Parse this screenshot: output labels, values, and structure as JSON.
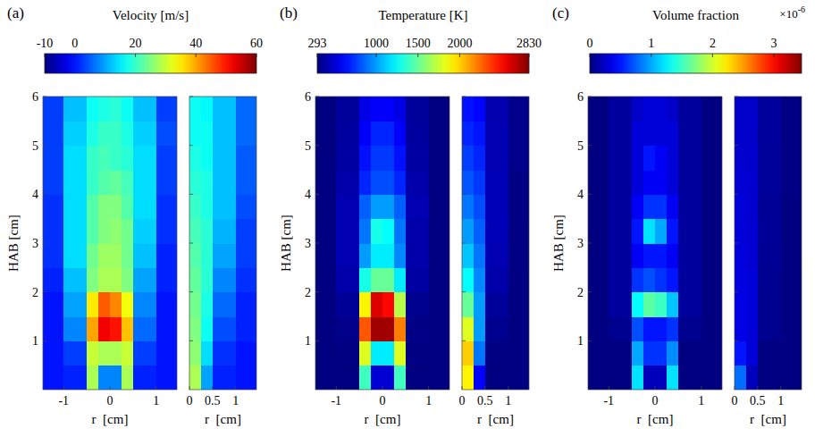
{
  "chart_data": [
    {
      "type": "heatmap",
      "label": "(a)",
      "colorbar": {
        "title": "Velocity [m/s]",
        "range": [
          -10,
          60
        ],
        "ticks": [
          -10,
          0,
          20,
          40,
          60
        ]
      },
      "plots": [
        {
          "xlim": [
            -1.45,
            1.45
          ],
          "xticks": [
            -1,
            0,
            1
          ],
          "ylim": [
            0,
            6
          ],
          "yticks": [
            1,
            2,
            3,
            4,
            5,
            6
          ],
          "xlabel": "r  [cm]",
          "ylabel": "HAB [cm]",
          "x_edges": [
            -1.45,
            -1,
            -0.5,
            -0.25,
            0,
            0.25,
            0.5,
            1,
            1.45
          ],
          "y_edges": [
            0,
            0.5,
            1,
            1.5,
            2,
            2.5,
            3,
            3.5,
            4,
            4.5,
            5,
            5.5,
            6
          ],
          "cells": [
            [
              0,
              1,
              28,
              8,
              8,
              28,
              1,
              0
            ],
            [
              0,
              3,
              30,
              28,
              28,
              30,
              3,
              0
            ],
            [
              0,
              8,
              40,
              52,
              50,
              38,
              6,
              0
            ],
            [
              0,
              10,
              35,
              45,
              42,
              33,
              8,
              0
            ],
            [
              1,
              12,
              25,
              28,
              28,
              25,
              10,
              1
            ],
            [
              2,
              14,
              24,
              27,
              27,
              24,
              12,
              1
            ],
            [
              2,
              14,
              22,
              25,
              26,
              24,
              13,
              2
            ],
            [
              2,
              14,
              22,
              25,
              25,
              22,
              14,
              2
            ],
            [
              3,
              14,
              20,
              22,
              23,
              21,
              14,
              3
            ],
            [
              3,
              14,
              20,
              21,
              20,
              19,
              14,
              3
            ],
            [
              3,
              13,
              18,
              20,
              20,
              18,
              13,
              4
            ],
            [
              3,
              12,
              17,
              18,
              19,
              17,
              12,
              3
            ]
          ]
        },
        {
          "xlim": [
            0,
            1.45
          ],
          "xticks": [
            0,
            0.5,
            1
          ],
          "ylim": [
            0,
            6
          ],
          "yticks": [
            1,
            2,
            3,
            4,
            5,
            6
          ],
          "xlabel": "r  [cm]",
          "tick_labels": "x",
          "x_edges": [
            0,
            0.25,
            0.5,
            1,
            1.45
          ],
          "y_edges": [
            0,
            0.5,
            1,
            1.5,
            2,
            2.5,
            3,
            3.5,
            4,
            4.5,
            5,
            5.5,
            6
          ],
          "cells": [
            [
              28,
              10,
              1,
              0
            ],
            [
              26,
              14,
              2,
              0
            ],
            [
              25,
              17,
              4,
              1
            ],
            [
              24,
              18,
              6,
              1
            ],
            [
              23,
              19,
              8,
              2
            ],
            [
              22,
              19,
              10,
              3
            ],
            [
              21,
              19,
              11,
              3
            ],
            [
              20,
              18,
              12,
              4
            ],
            [
              19,
              18,
              12,
              5
            ],
            [
              18,
              17,
              12,
              5
            ],
            [
              17,
              17,
              12,
              6
            ],
            [
              17,
              16,
              12,
              6
            ]
          ]
        }
      ]
    },
    {
      "type": "heatmap",
      "label": "(b)",
      "colorbar": {
        "title": "Temperature [K]",
        "range": [
          293,
          2830
        ],
        "ticks": [
          293,
          1000,
          1500,
          2000,
          2830
        ]
      },
      "plots": [
        {
          "xlim": [
            -1.45,
            1.45
          ],
          "xticks": [
            -1,
            0,
            1
          ],
          "ylim": [
            0,
            6
          ],
          "yticks": [
            1,
            2,
            3,
            4,
            5,
            6
          ],
          "xlabel": "r  [cm]",
          "ylabel": "HAB [cm]",
          "x_edges": [
            -1.45,
            -1,
            -0.5,
            -0.25,
            0,
            0.25,
            0.5,
            1,
            1.45
          ],
          "y_edges": [
            0,
            0.5,
            1,
            1.5,
            2,
            2.5,
            3,
            3.5,
            4,
            4.5,
            5,
            5.5,
            6
          ],
          "cells": [
            [
              293,
              293,
              1400,
              500,
              500,
              1400,
              293,
              293
            ],
            [
              293,
              300,
              1800,
              1200,
              1200,
              1800,
              300,
              293
            ],
            [
              293,
              320,
              2300,
              2750,
              2750,
              2200,
              310,
              293
            ],
            [
              293,
              350,
              1900,
              2600,
              2500,
              1700,
              330,
              293
            ],
            [
              293,
              400,
              1300,
              1500,
              1500,
              1200,
              380,
              293
            ],
            [
              293,
              420,
              1000,
              1200,
              1200,
              950,
              400,
              293
            ],
            [
              293,
              420,
              900,
              1300,
              1250,
              900,
              400,
              293
            ],
            [
              293,
              420,
              850,
              1000,
              1000,
              850,
              420,
              293
            ],
            [
              293,
              400,
              700,
              800,
              800,
              700,
              400,
              293
            ],
            [
              293,
              380,
              650,
              750,
              750,
              650,
              380,
              293
            ],
            [
              293,
              370,
              600,
              700,
              700,
              600,
              370,
              293
            ],
            [
              293,
              360,
              550,
              600,
              600,
              550,
              360,
              293
            ]
          ]
        },
        {
          "xlim": [
            0,
            1.45
          ],
          "xticks": [
            0,
            0.5,
            1
          ],
          "ylim": [
            0,
            6
          ],
          "yticks": [
            1,
            2,
            3,
            4,
            5,
            6
          ],
          "xlabel": "r  [cm]",
          "tick_labels": "x",
          "x_edges": [
            0,
            0.25,
            0.5,
            1,
            1.45
          ],
          "y_edges": [
            0,
            0.5,
            1,
            1.5,
            2,
            2.5,
            3,
            3.5,
            4,
            4.5,
            5,
            5.5,
            6
          ],
          "cells": [
            [
              1900,
              600,
              293,
              293
            ],
            [
              2000,
              900,
              300,
              293
            ],
            [
              1800,
              1000,
              330,
              293
            ],
            [
              1500,
              1000,
              360,
              293
            ],
            [
              1250,
              950,
              400,
              293
            ],
            [
              1100,
              900,
              420,
              300
            ],
            [
              1000,
              850,
              430,
              300
            ],
            [
              900,
              800,
              430,
              310
            ],
            [
              820,
              750,
              430,
              310
            ],
            [
              760,
              700,
              420,
              320
            ],
            [
              700,
              660,
              420,
              320
            ],
            [
              650,
              620,
              410,
              320
            ]
          ]
        }
      ]
    },
    {
      "type": "heatmap",
      "label": "(c)",
      "colorbar": {
        "title": "Volume fraction",
        "range": [
          0,
          3.45
        ],
        "ticks": [
          0,
          1,
          2,
          3
        ],
        "multiplier": {
          "base": "×10",
          "exponent": "-6"
        }
      },
      "plots": [
        {
          "xlim": [
            -1.45,
            1.45
          ],
          "xticks": [
            -1,
            0,
            1
          ],
          "ylim": [
            0,
            6
          ],
          "yticks": [
            1,
            2,
            3,
            4,
            5,
            6
          ],
          "xlabel": "r  [cm]",
          "ylabel": "HAB [cm]",
          "x_edges": [
            -1.45,
            -1,
            -0.5,
            -0.25,
            0,
            0.25,
            0.5,
            1,
            1.45
          ],
          "y_edges": [
            0,
            0.5,
            1,
            1.5,
            2,
            2.5,
            3,
            3.5,
            4,
            4.5,
            5,
            5.5,
            6
          ],
          "cells": [
            [
              0,
              0,
              1.2,
              0.2,
              0.2,
              1.2,
              0,
              0
            ],
            [
              0,
              0,
              1.0,
              0.6,
              0.6,
              0.9,
              0,
              0
            ],
            [
              0,
              0.05,
              0.7,
              0.5,
              0.5,
              0.6,
              0.05,
              0
            ],
            [
              0,
              0.1,
              1.3,
              1.6,
              1.5,
              1.1,
              0.1,
              0
            ],
            [
              0,
              0.1,
              0.6,
              0.7,
              0.6,
              0.5,
              0.1,
              0
            ],
            [
              0,
              0.1,
              0.4,
              0.5,
              0.5,
              0.4,
              0.1,
              0
            ],
            [
              0,
              0.1,
              0.5,
              1.2,
              1.0,
              0.5,
              0.1,
              0
            ],
            [
              0,
              0.1,
              0.4,
              0.6,
              0.6,
              0.4,
              0.1,
              0
            ],
            [
              0,
              0.1,
              0.3,
              0.4,
              0.4,
              0.3,
              0.1,
              0
            ],
            [
              0,
              0.1,
              0.3,
              0.5,
              0.4,
              0.3,
              0.1,
              0
            ],
            [
              0,
              0.1,
              0.3,
              0.3,
              0.3,
              0.3,
              0.1,
              0
            ],
            [
              0,
              0.1,
              0.25,
              0.3,
              0.3,
              0.25,
              0.1,
              0
            ]
          ]
        },
        {
          "xlim": [
            0,
            1.45
          ],
          "xticks": [
            0,
            0.5,
            1
          ],
          "ylim": [
            0,
            6
          ],
          "yticks": [
            1,
            2,
            3,
            4,
            5,
            6
          ],
          "xlabel": "r  [cm]",
          "tick_labels": "x",
          "x_edges": [
            0,
            0.25,
            0.5,
            1,
            1.45
          ],
          "y_edges": [
            0,
            0.5,
            1,
            1.5,
            2,
            2.5,
            3,
            3.5,
            4,
            4.5,
            5,
            5.5,
            6
          ],
          "cells": [
            [
              0.8,
              0.2,
              0,
              0
            ],
            [
              0.5,
              0.3,
              0,
              0
            ],
            [
              0.35,
              0.3,
              0.05,
              0
            ],
            [
              0.35,
              0.3,
              0.05,
              0
            ],
            [
              0.33,
              0.3,
              0.06,
              0
            ],
            [
              0.32,
              0.28,
              0.07,
              0.01
            ],
            [
              0.3,
              0.28,
              0.08,
              0.01
            ],
            [
              0.3,
              0.27,
              0.08,
              0.01
            ],
            [
              0.28,
              0.27,
              0.09,
              0.02
            ],
            [
              0.27,
              0.26,
              0.09,
              0.02
            ],
            [
              0.26,
              0.25,
              0.1,
              0.02
            ],
            [
              0.25,
              0.25,
              0.1,
              0.02
            ]
          ]
        }
      ]
    }
  ]
}
